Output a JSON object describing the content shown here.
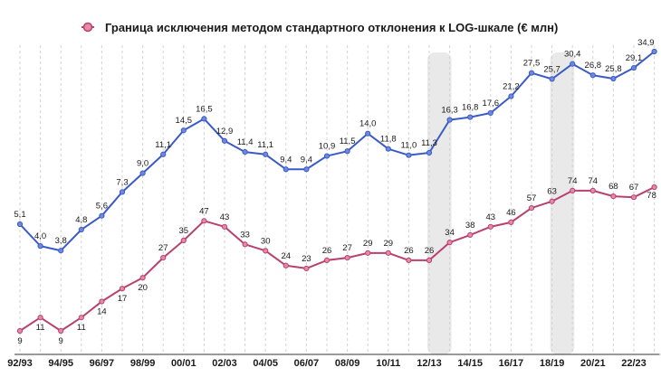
{
  "chart_data": {
    "type": "line",
    "legend": "Граница исключения методом стандартного отклонения к LOG-шкале (€ млн)",
    "x_tick_labels": [
      "92/93",
      "94/95",
      "96/97",
      "98/99",
      "00/01",
      "02/03",
      "04/05",
      "06/07",
      "08/09",
      "10/11",
      "12/13",
      "14/15",
      "16/17",
      "18/19",
      "20/21",
      "22/23"
    ],
    "highlight_bands": [
      [
        20,
        21
      ],
      [
        26,
        27
      ]
    ],
    "series": [
      {
        "name": "blue",
        "color": "#3a5bc7",
        "values": [
          5.1,
          4.0,
          3.8,
          4.8,
          5.6,
          7.3,
          9.0,
          11.1,
          14.5,
          16.5,
          12.9,
          11.4,
          11.1,
          9.4,
          9.4,
          10.9,
          11.5,
          14.0,
          11.8,
          11.0,
          11.3,
          16.3,
          16.8,
          17.6,
          21.2,
          27.5,
          25.7,
          30.4,
          26.8,
          25.8,
          29.1,
          34.9
        ],
        "labels": [
          "5,1",
          "4,0",
          "3,8",
          "4,8",
          "5,6",
          "7,3",
          "9,0",
          "11,1",
          "14,5",
          "16,5",
          "12,9",
          "11,4",
          "11,1",
          "9,4",
          "9,4",
          "10,9",
          "11,5",
          "14,0",
          "11,8",
          "11,0",
          "11,3",
          "16,3",
          "16,8",
          "17,6",
          "21,2",
          "27,5",
          "25,7",
          "30,4",
          "26,8",
          "25,8",
          "29,1",
          "34,9"
        ]
      },
      {
        "name": "pink",
        "color": "#b8416e",
        "marker_color": "#e78aa6",
        "values": [
          9,
          11,
          9,
          11,
          14,
          17,
          20,
          27,
          35,
          47,
          43,
          33,
          30,
          24,
          23,
          26,
          27,
          29,
          29,
          26,
          26,
          34,
          38,
          43,
          46,
          57,
          63,
          74,
          74,
          68,
          67,
          78
        ],
        "labels": [
          "9",
          "11",
          "9",
          "11",
          "14",
          "17",
          "20",
          "27",
          "35",
          "47",
          "43",
          "33",
          "30",
          "24",
          "23",
          "26",
          "27",
          "29",
          "29",
          "26",
          "26",
          "34",
          "38",
          "43",
          "46",
          "57",
          "63",
          "74",
          "74",
          "68",
          "67",
          "78"
        ]
      }
    ]
  }
}
